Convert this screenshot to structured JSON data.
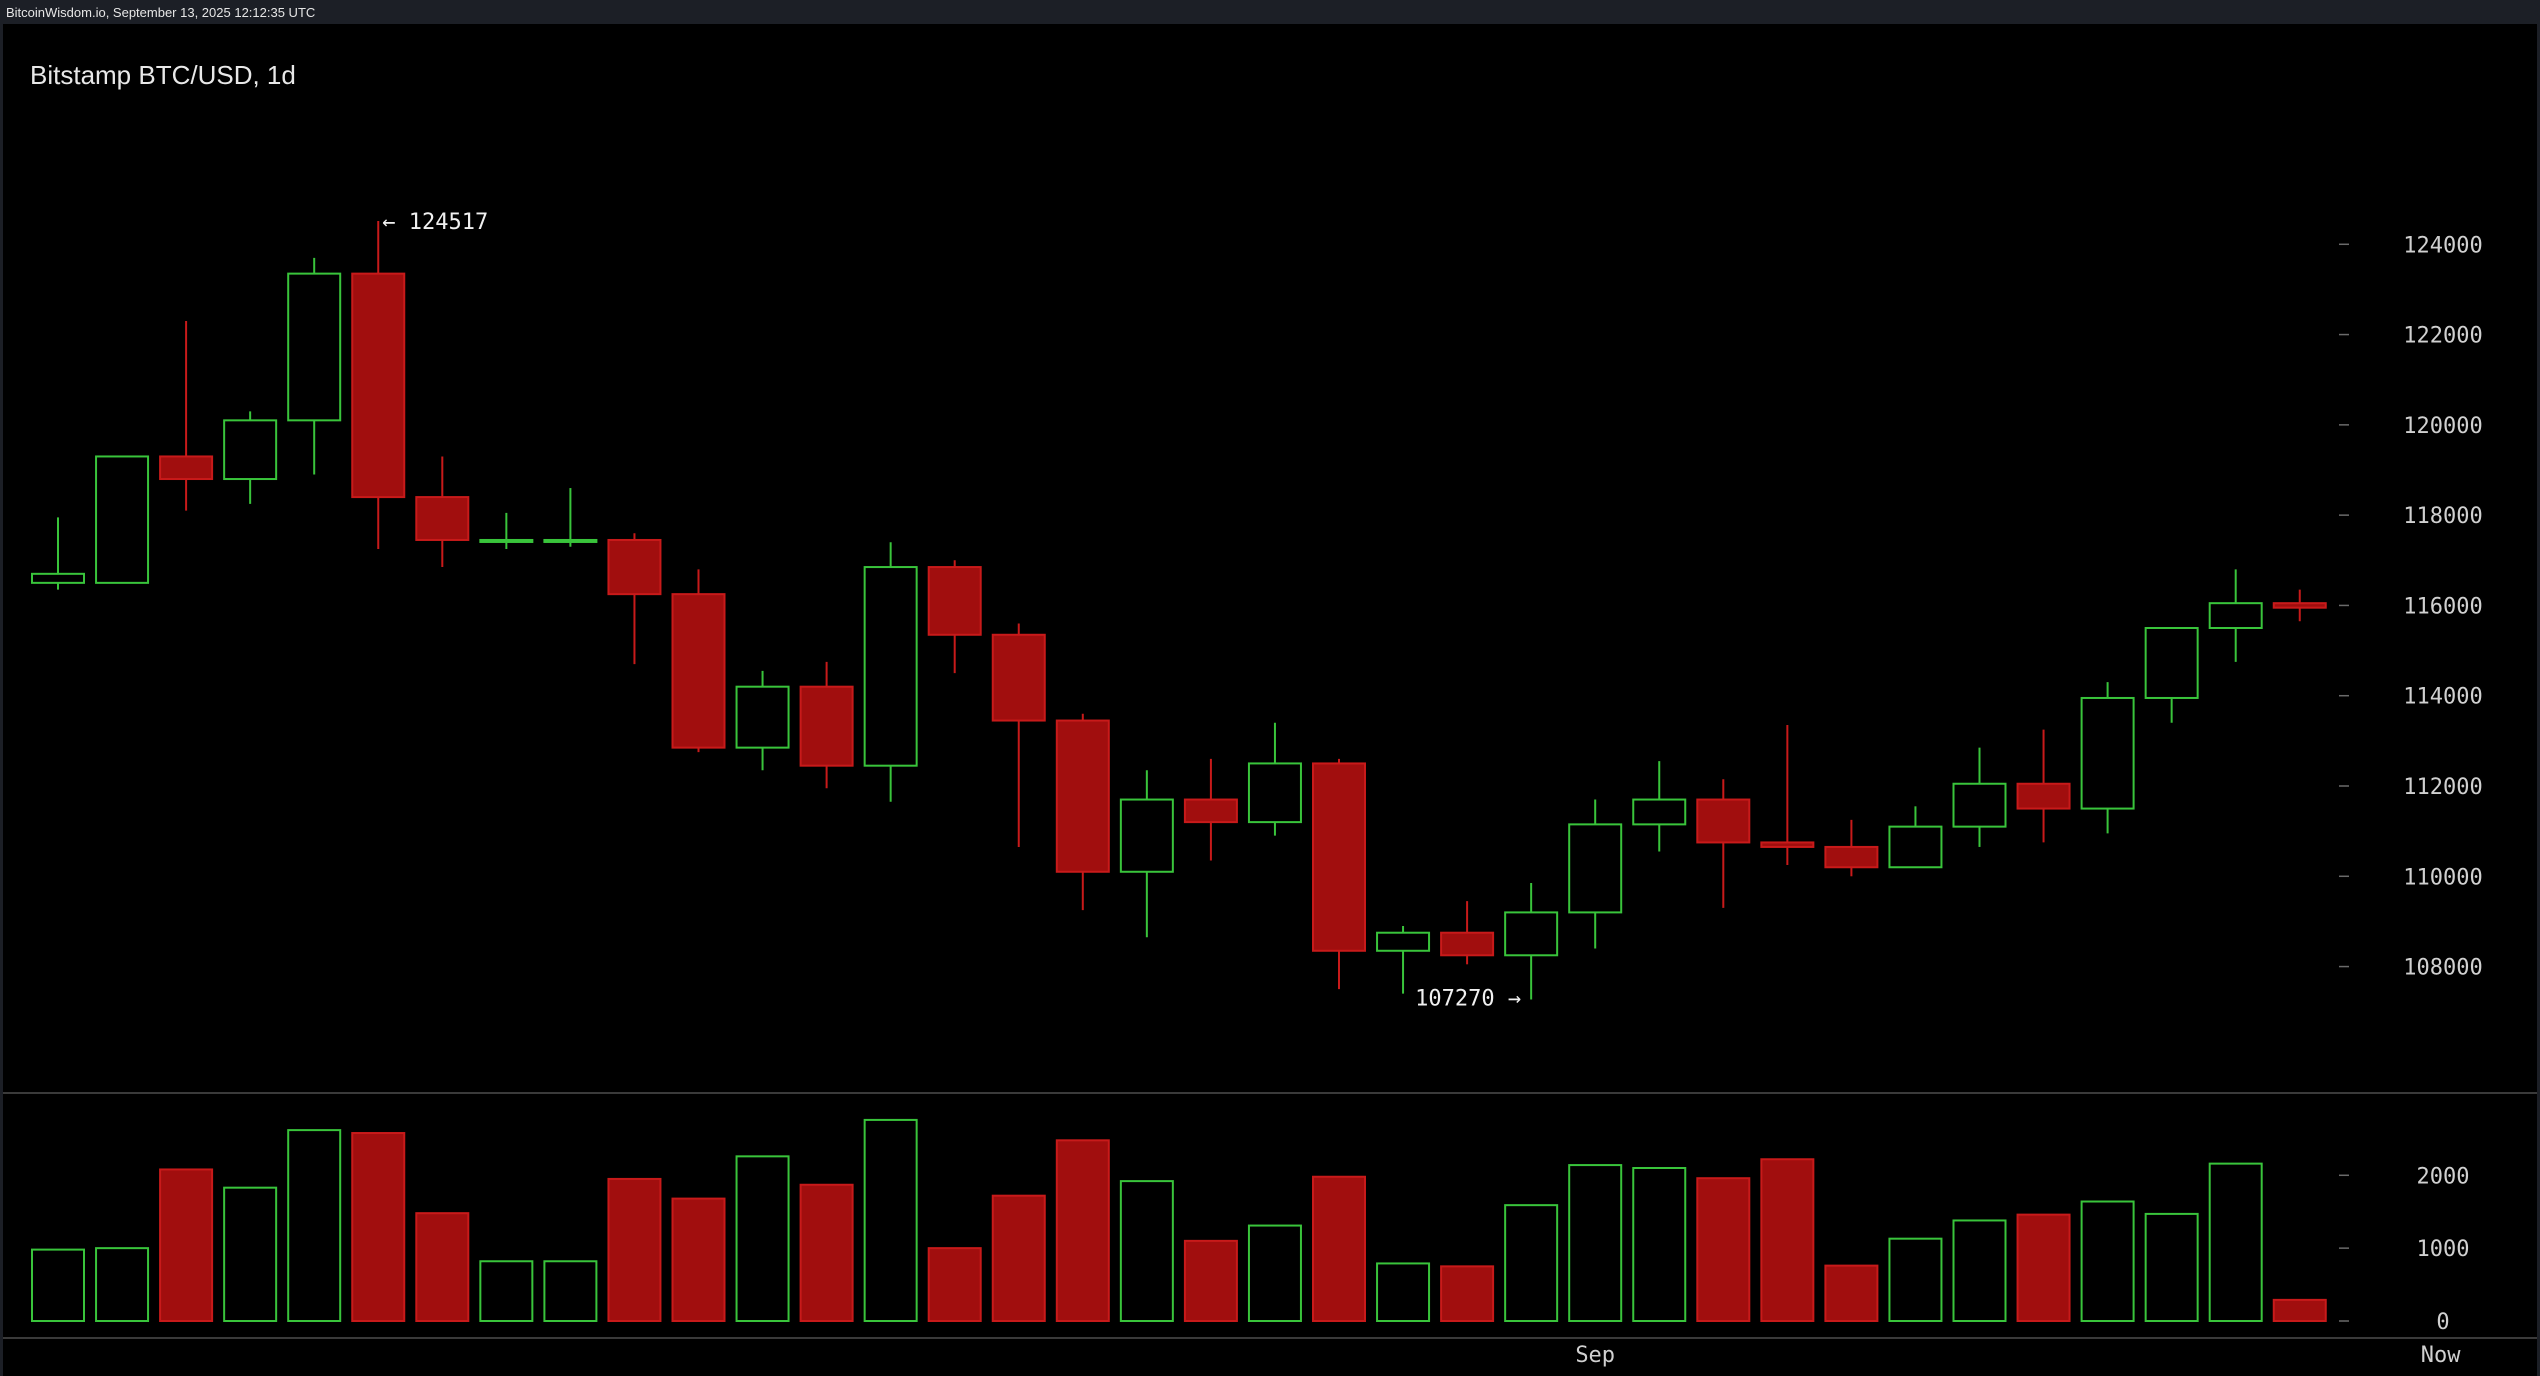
{
  "header": {
    "source": "BitcoinWisdom.io, September 13, 2025 12:12:35 UTC"
  },
  "chart_data": {
    "type": "candlestick",
    "title": "Bitstamp BTC/USD, 1d",
    "colors": {
      "up": "#39c43b",
      "down": "#a10e0e",
      "down_edge": "#c81a1a",
      "axis_text": "#d0d0d0",
      "label_text": "#f0f0f0",
      "divider": "#3a3a3a",
      "background": "#000000"
    },
    "price_axis": {
      "ylim": [
        105000,
        126000
      ],
      "ticks": [
        108000,
        110000,
        112000,
        114000,
        116000,
        118000,
        120000,
        122000,
        124000
      ],
      "tick_labels": [
        "108000",
        "110000",
        "112000",
        "114000",
        "116000",
        "118000",
        "120000",
        "122000",
        "124000"
      ]
    },
    "volume_axis": {
      "ylim": [
        0,
        2800
      ],
      "ticks": [
        0,
        1000,
        2000
      ],
      "tick_labels": [
        "0",
        "1000",
        "2000"
      ]
    },
    "x_labels": [
      {
        "text": "Sep",
        "index": 24
      },
      {
        "text": "Now",
        "index": 37.2
      }
    ],
    "annotations": {
      "high_label": "← 124517",
      "low_label": "107270 →"
    },
    "high": {
      "value": 124517,
      "index": 5
    },
    "low": {
      "value": 107270,
      "index": 23
    },
    "candles": [
      {
        "o": 116500,
        "h": 117950,
        "l": 116350,
        "c": 116700,
        "v": 980
      },
      {
        "o": 116500,
        "h": 119300,
        "l": 116500,
        "c": 119300,
        "v": 1000
      },
      {
        "o": 119300,
        "h": 122300,
        "l": 118100,
        "c": 118800,
        "v": 2080
      },
      {
        "o": 118800,
        "h": 120300,
        "l": 118250,
        "c": 120100,
        "v": 1830
      },
      {
        "o": 120100,
        "h": 123700,
        "l": 118900,
        "c": 123350,
        "v": 2620
      },
      {
        "o": 123350,
        "h": 124517,
        "l": 117250,
        "c": 118400,
        "v": 2580
      },
      {
        "o": 118400,
        "h": 119300,
        "l": 116850,
        "c": 117450,
        "v": 1480
      },
      {
        "o": 117450,
        "h": 118050,
        "l": 117250,
        "c": 117450,
        "v": 820
      },
      {
        "o": 117450,
        "h": 118600,
        "l": 117300,
        "c": 117450,
        "v": 820
      },
      {
        "o": 117450,
        "h": 117600,
        "l": 114700,
        "c": 116250,
        "v": 1950
      },
      {
        "o": 116250,
        "h": 116800,
        "l": 112750,
        "c": 112850,
        "v": 1680
      },
      {
        "o": 112850,
        "h": 114550,
        "l": 112350,
        "c": 114200,
        "v": 2260
      },
      {
        "o": 114200,
        "h": 114750,
        "l": 111950,
        "c": 112450,
        "v": 1870
      },
      {
        "o": 112450,
        "h": 117400,
        "l": 111650,
        "c": 116850,
        "v": 2760
      },
      {
        "o": 116850,
        "h": 117000,
        "l": 114500,
        "c": 115350,
        "v": 1000
      },
      {
        "o": 115350,
        "h": 115600,
        "l": 110650,
        "c": 113450,
        "v": 1720
      },
      {
        "o": 113450,
        "h": 113600,
        "l": 109250,
        "c": 110100,
        "v": 2480
      },
      {
        "o": 110100,
        "h": 112350,
        "l": 108650,
        "c": 111700,
        "v": 1920
      },
      {
        "o": 111700,
        "h": 112600,
        "l": 110350,
        "c": 111200,
        "v": 1100
      },
      {
        "o": 111200,
        "h": 113400,
        "l": 110900,
        "c": 112500,
        "v": 1310
      },
      {
        "o": 112500,
        "h": 112600,
        "l": 107500,
        "c": 108350,
        "v": 1980
      },
      {
        "o": 108350,
        "h": 108900,
        "l": 107400,
        "c": 108750,
        "v": 790
      },
      {
        "o": 108750,
        "h": 109450,
        "l": 108050,
        "c": 108250,
        "v": 750
      },
      {
        "o": 108250,
        "h": 109850,
        "l": 107270,
        "c": 109200,
        "v": 1590
      },
      {
        "o": 109200,
        "h": 111700,
        "l": 108400,
        "c": 111150,
        "v": 2140
      },
      {
        "o": 111150,
        "h": 112550,
        "l": 110550,
        "c": 111700,
        "v": 2100
      },
      {
        "o": 111700,
        "h": 112150,
        "l": 109300,
        "c": 110750,
        "v": 1960
      },
      {
        "o": 110750,
        "h": 113350,
        "l": 110250,
        "c": 110650,
        "v": 2220
      },
      {
        "o": 110650,
        "h": 111250,
        "l": 110000,
        "c": 110200,
        "v": 760
      },
      {
        "o": 110200,
        "h": 111550,
        "l": 110200,
        "c": 111100,
        "v": 1130
      },
      {
        "o": 111100,
        "h": 112850,
        "l": 110650,
        "c": 112050,
        "v": 1380
      },
      {
        "o": 112050,
        "h": 113250,
        "l": 110750,
        "c": 111500,
        "v": 1460
      },
      {
        "o": 111500,
        "h": 114300,
        "l": 110950,
        "c": 113950,
        "v": 1640
      },
      {
        "o": 113950,
        "h": 115500,
        "l": 113400,
        "c": 115500,
        "v": 1470
      },
      {
        "o": 115500,
        "h": 116800,
        "l": 114750,
        "c": 116050,
        "v": 2160
      },
      {
        "o": 116050,
        "h": 116350,
        "l": 115650,
        "c": 115950,
        "v": 290
      }
    ]
  }
}
